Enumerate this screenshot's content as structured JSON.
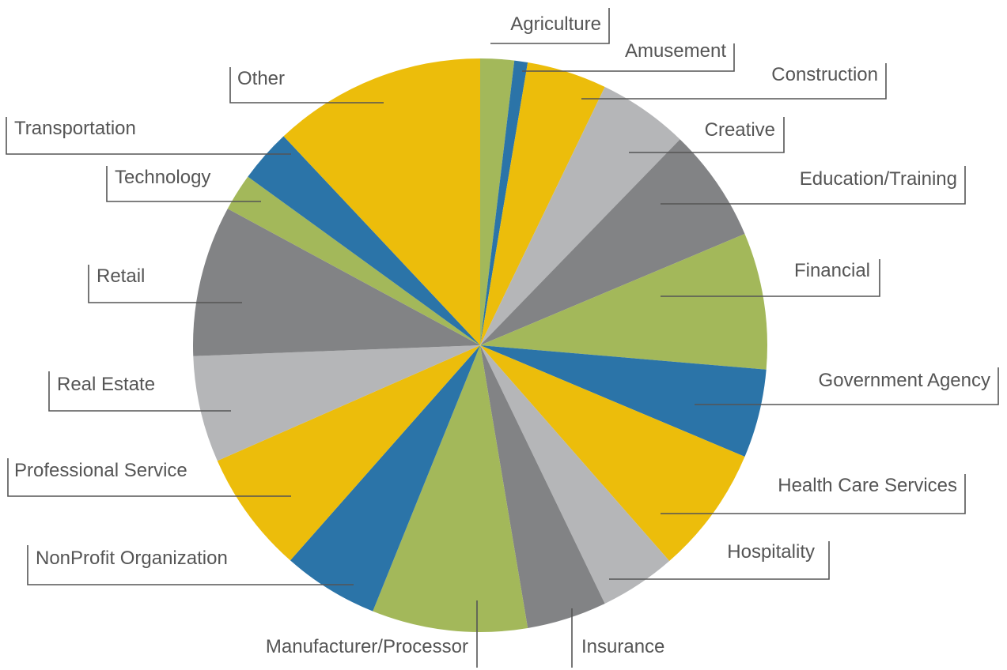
{
  "chart_data": {
    "type": "pie",
    "categories": [
      "Agriculture",
      "Amusement",
      "Construction",
      "Creative",
      "Education/Training",
      "Financial",
      "Government Agency",
      "Health Care Services",
      "Hospitality",
      "Insurance",
      "Manufacturer/Processor",
      "NonProfit Organization",
      "Professional Service",
      "Real Estate",
      "Retail",
      "Technology",
      "Transportation",
      "Other"
    ],
    "values": [
      1.9,
      0.75,
      4.5,
      5.1,
      6.4,
      7.7,
      5.0,
      7.2,
      4.3,
      4.5,
      8.75,
      5.4,
      6.9,
      6.0,
      8.5,
      2.1,
      3.0,
      12.0
    ],
    "colors": [
      "#a3b85a",
      "#2b74a8",
      "#ecbd0b",
      "#b5b6b8",
      "#828385",
      "#a3b85a",
      "#2b74a8",
      "#ecbd0b",
      "#b5b6b8",
      "#828385",
      "#a3b85a",
      "#2b74a8",
      "#ecbd0b",
      "#b5b6b8",
      "#828385",
      "#a3b85a",
      "#2b74a8",
      "#ecbd0b"
    ]
  }
}
